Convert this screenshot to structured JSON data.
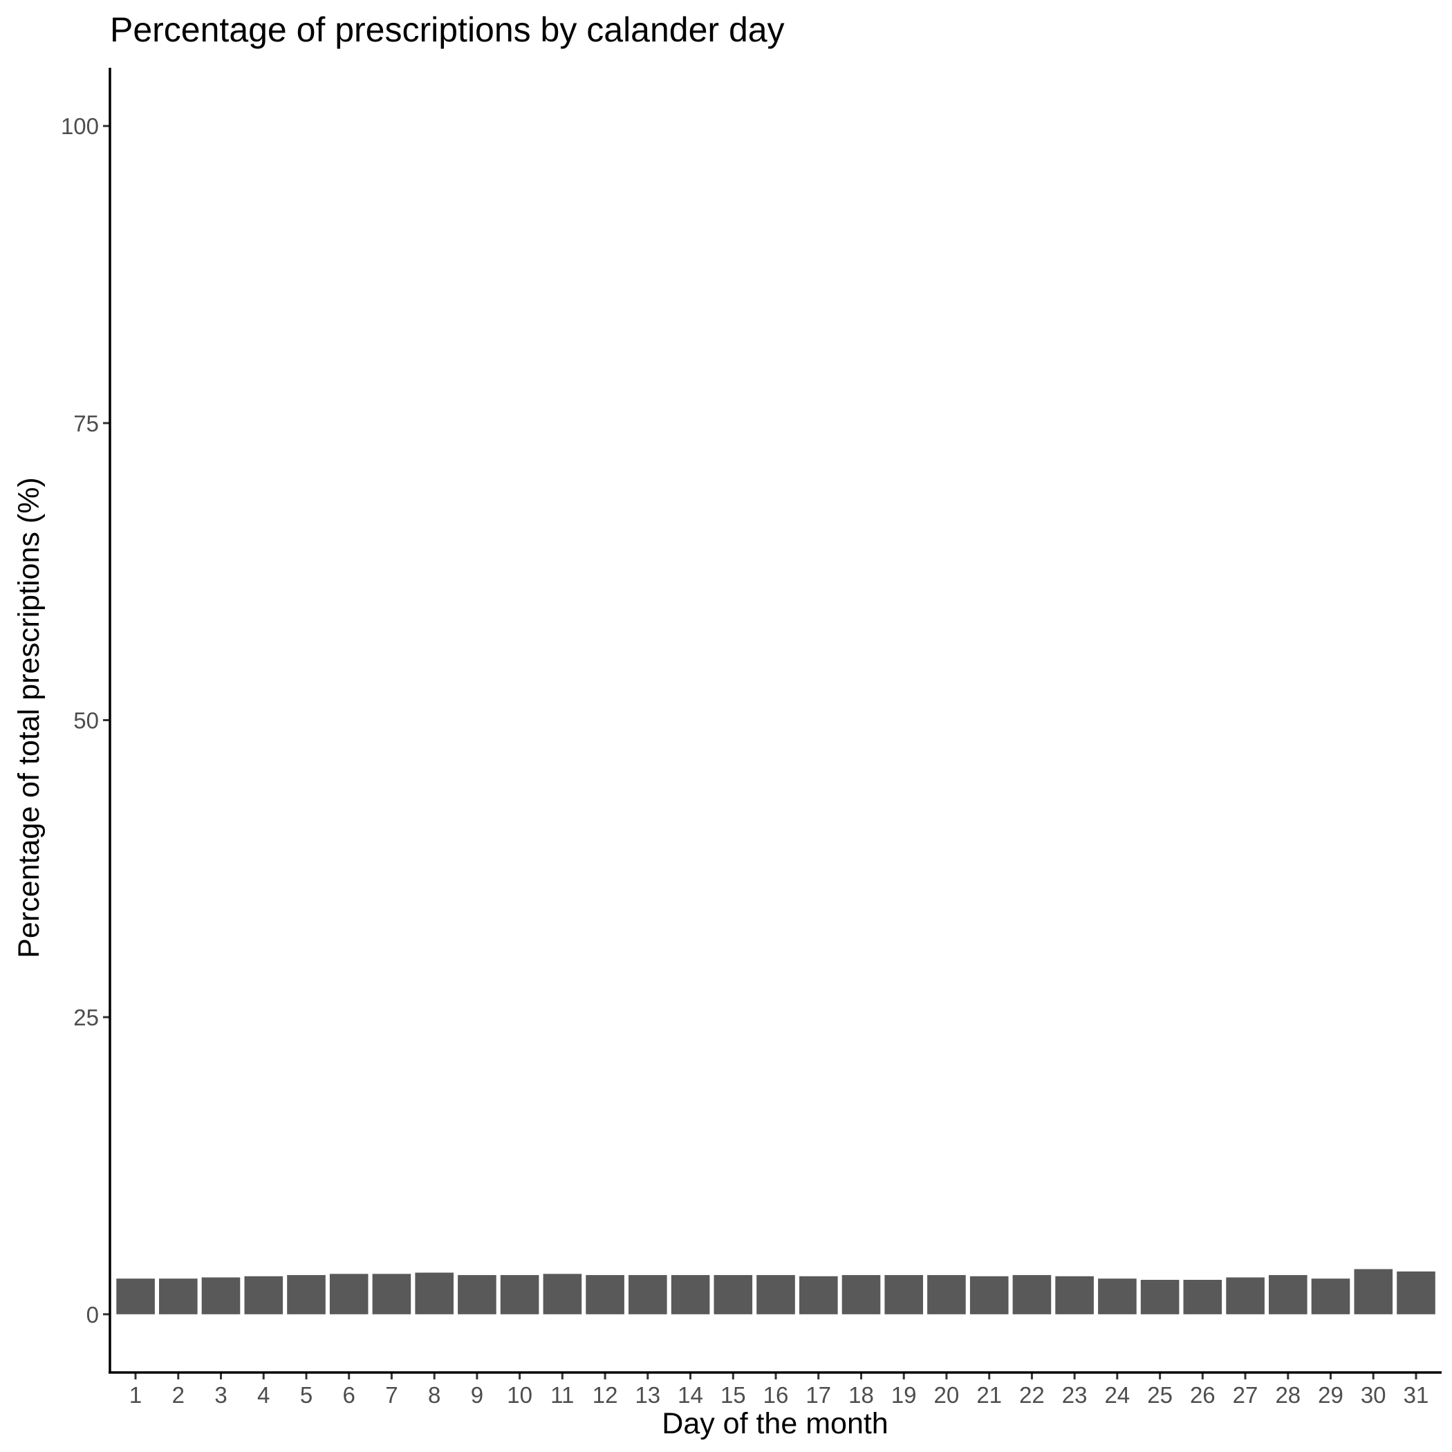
{
  "chart_data": {
    "type": "bar",
    "title": "Percentage of prescriptions by calander day",
    "xlabel": "Day of the month",
    "ylabel": "Percentage of total prescriptions (%)",
    "categories": [
      "1",
      "2",
      "3",
      "4",
      "5",
      "6",
      "7",
      "8",
      "9",
      "10",
      "11",
      "12",
      "13",
      "14",
      "15",
      "16",
      "17",
      "18",
      "19",
      "20",
      "21",
      "22",
      "23",
      "24",
      "25",
      "26",
      "27",
      "28",
      "29",
      "30",
      "31"
    ],
    "values": [
      3.0,
      3.0,
      3.1,
      3.2,
      3.3,
      3.4,
      3.4,
      3.5,
      3.3,
      3.3,
      3.4,
      3.3,
      3.3,
      3.3,
      3.3,
      3.3,
      3.2,
      3.3,
      3.3,
      3.3,
      3.2,
      3.3,
      3.2,
      3.0,
      2.9,
      2.9,
      3.1,
      3.3,
      3.0,
      3.8,
      3.6
    ],
    "yticks": [
      0,
      25,
      50,
      75,
      100
    ],
    "ylim": [
      -4.9,
      104.9
    ],
    "bar_color": "#595959",
    "grid": false,
    "legend": "none"
  }
}
